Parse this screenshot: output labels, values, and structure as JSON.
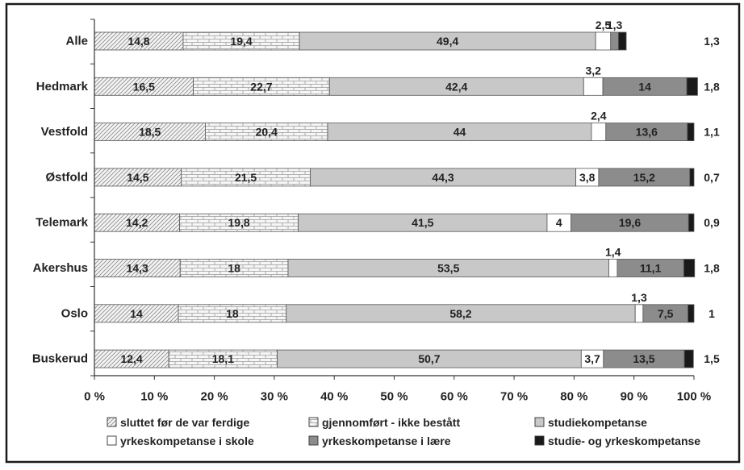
{
  "chart_data": {
    "type": "bar",
    "orientation": "horizontal",
    "stacked": "percent",
    "categories": [
      "Alle",
      "Hedmark",
      "Vestfold",
      "Østfold",
      "Telemark",
      "Akershus",
      "Oslo",
      "Buskerud"
    ],
    "series": [
      {
        "name": "sluttet før de var ferdige",
        "color": "#f2f2f2",
        "pattern": "diagonal-hatch",
        "values": [
          14.8,
          16.5,
          18.5,
          14.5,
          14.2,
          14.3,
          14,
          12.4
        ],
        "labels": [
          "14,8",
          "16,5",
          "18,5",
          "14,5",
          "14,2",
          "14,3",
          "14",
          "12,4"
        ]
      },
      {
        "name": "gjennomført - ikke bestått",
        "color": "#f4f4f4",
        "pattern": "brick",
        "values": [
          19.4,
          22.7,
          20.4,
          21.5,
          19.8,
          18,
          18,
          18.1
        ],
        "labels": [
          "19,4",
          "22,7",
          "20,4",
          "21,5",
          "19,8",
          "18",
          "18",
          "18,1"
        ]
      },
      {
        "name": "studiekompetanse",
        "color": "#c8c8c8",
        "pattern": "solid",
        "values": [
          49.4,
          42.4,
          44,
          44.3,
          41.5,
          53.5,
          58.2,
          50.7
        ],
        "labels": [
          "49,4",
          "42,4",
          "44",
          "44,3",
          "41,5",
          "53,5",
          "58,2",
          "50,7"
        ]
      },
      {
        "name": "yrkeskompetanse i skole",
        "color": "#ffffff",
        "pattern": "solid",
        "values": [
          2.5,
          3.2,
          2.4,
          3.8,
          4,
          1.4,
          1.3,
          3.7
        ],
        "labels": [
          "2,5",
          "3,2",
          "2,4",
          "3,8",
          "4",
          "1,4",
          "1,3",
          "3,7"
        ]
      },
      {
        "name": "yrkeskompetanse i lære",
        "color": "#8c8c8c",
        "pattern": "solid",
        "values": [
          1.3,
          14,
          13.6,
          15.2,
          19.6,
          11.1,
          7.5,
          13.5
        ],
        "labels": [
          "1,3",
          "14",
          "13,6",
          "15,2",
          "19,6",
          "11,1",
          "7,5",
          "13,5"
        ]
      },
      {
        "name": "studie- og yrkeskompetanse",
        "color": "#1a1a1a",
        "pattern": "solid",
        "values": [
          1.3,
          1.8,
          1.1,
          0.7,
          0.9,
          1.8,
          1,
          1.5
        ],
        "labels": [
          "1,3",
          "1,8",
          "1,1",
          "0,7",
          "0,9",
          "1,8",
          "1",
          "1,5"
        ]
      }
    ],
    "x_ticks": [
      "0 %",
      "10 %",
      "20 %",
      "30 %",
      "40 %",
      "50 %",
      "60 %",
      "70 %",
      "80 %",
      "90 %",
      "100 %"
    ],
    "xlim": [
      0,
      100
    ],
    "title": "",
    "xlabel": "",
    "ylabel": "",
    "grid": false,
    "legend_position": "bottom"
  }
}
